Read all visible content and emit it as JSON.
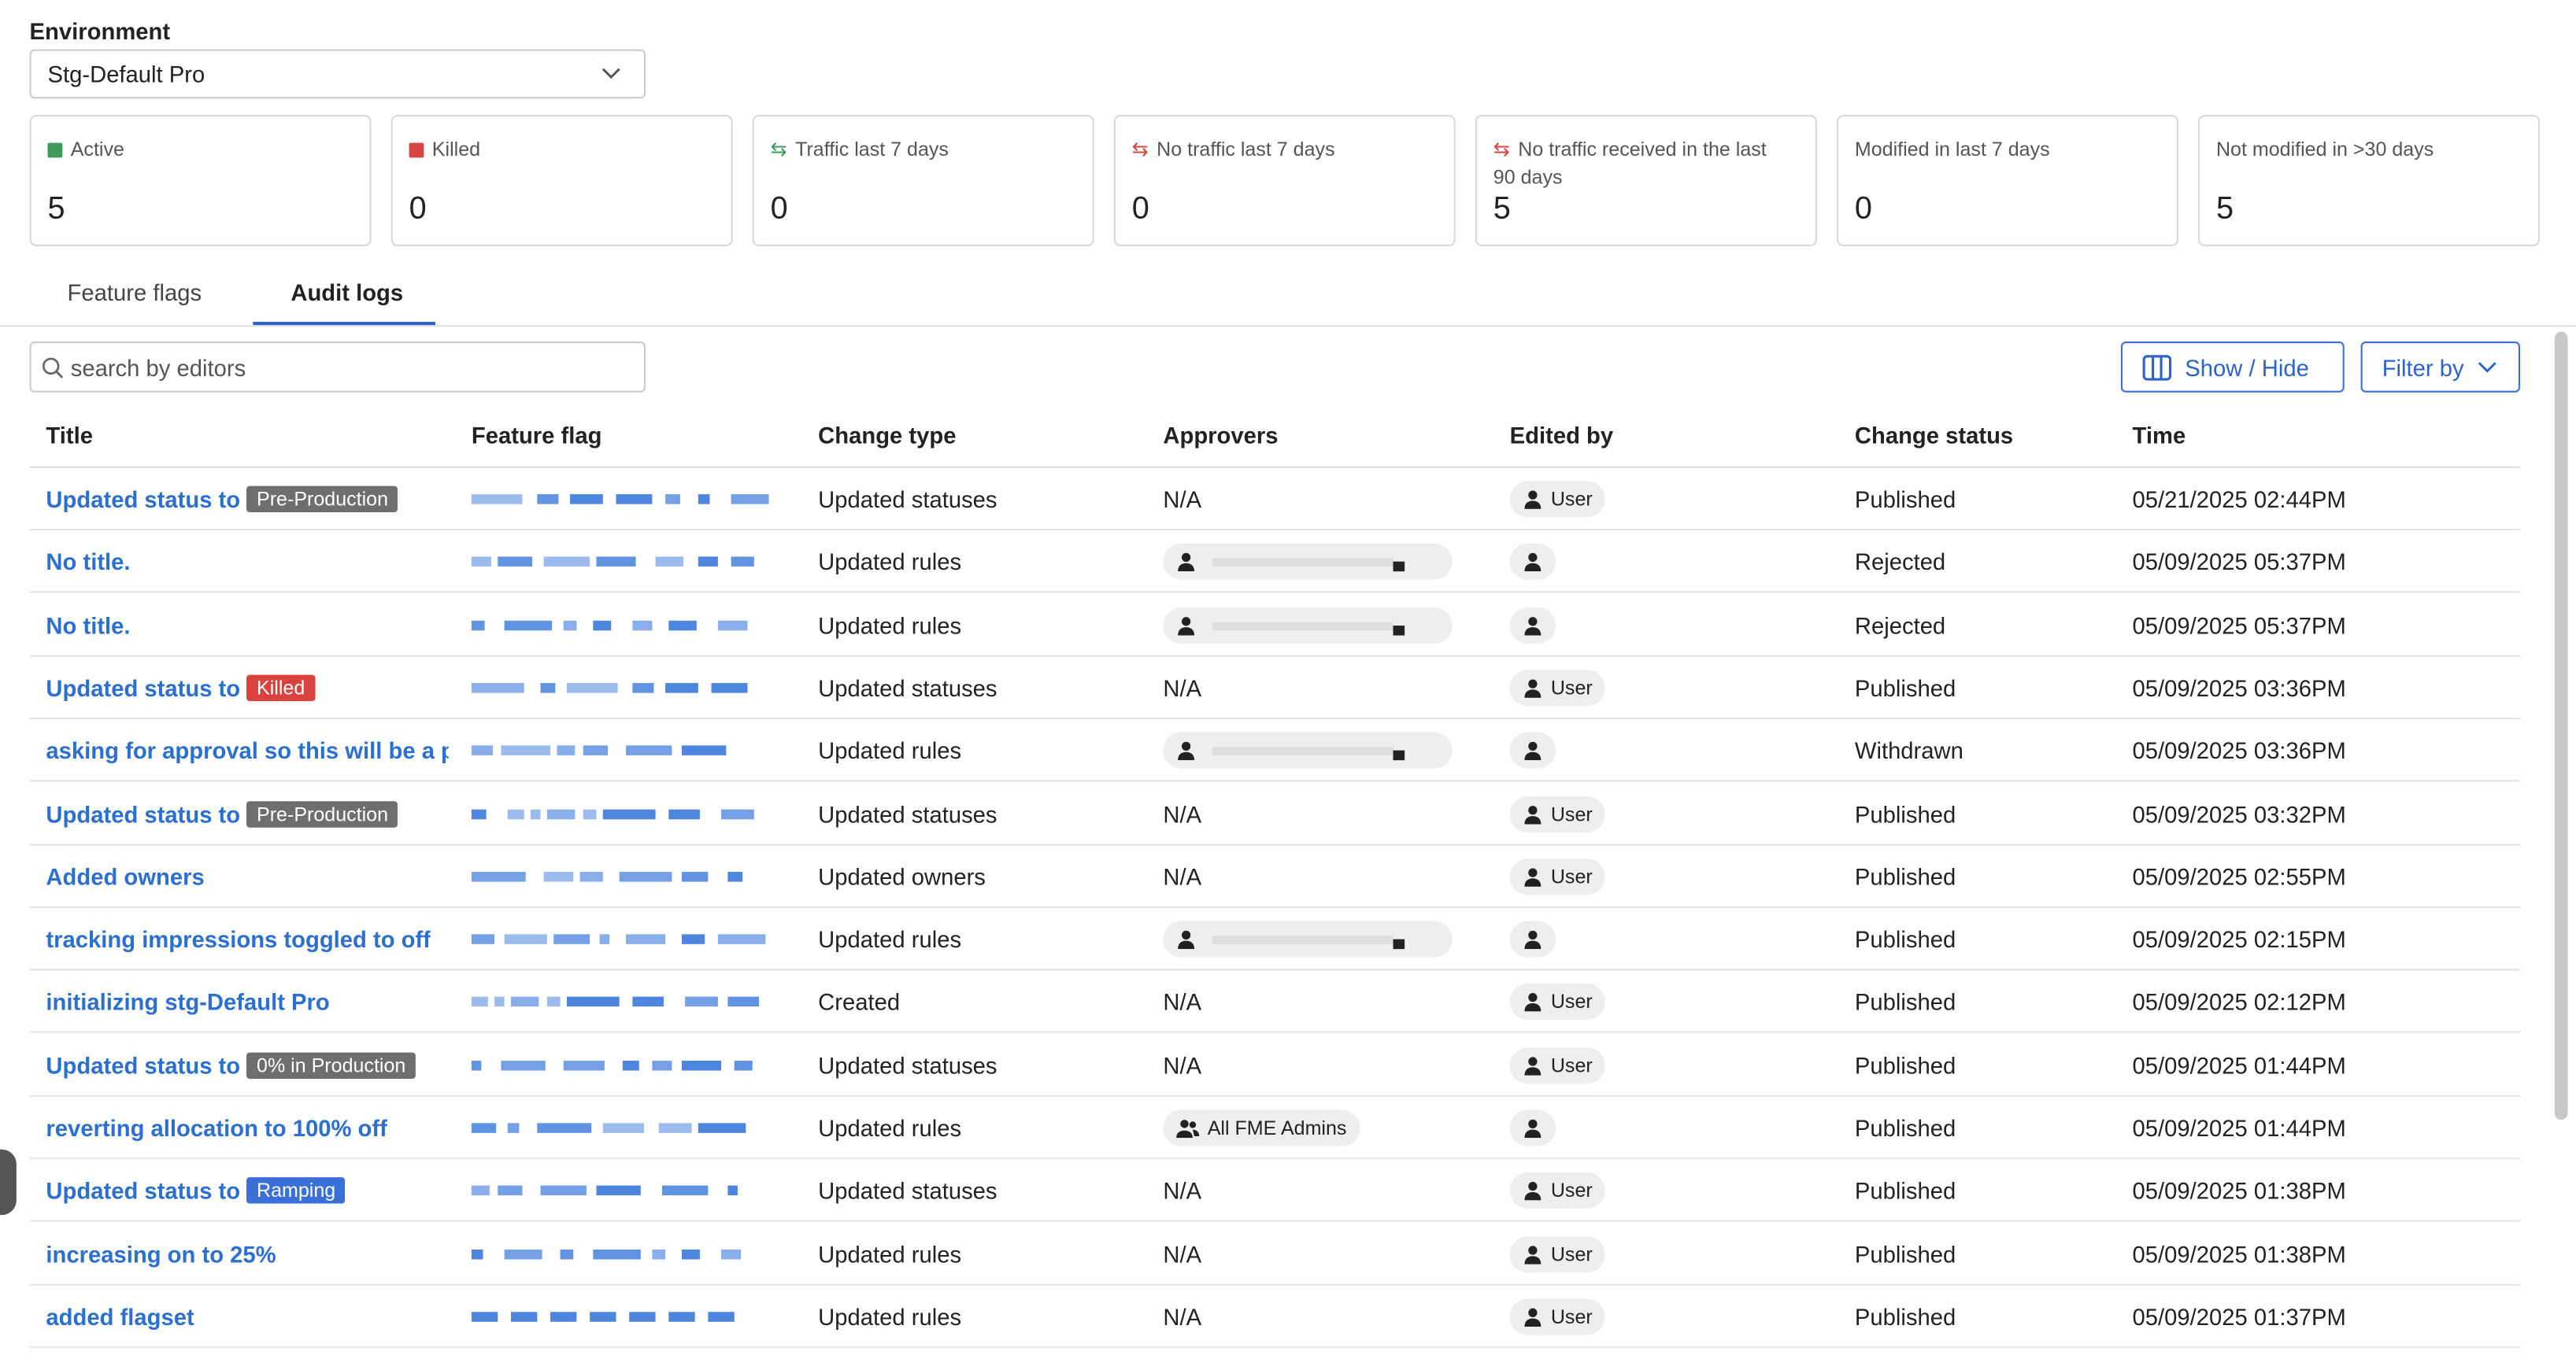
{
  "environment": {
    "label": "Environment",
    "value": "Stg-Default Pro"
  },
  "stats": [
    {
      "label": "Active",
      "value": 5,
      "icon": "square",
      "color": "#3d9a5c"
    },
    {
      "label": "Killed",
      "value": 0,
      "icon": "square",
      "color": "#d64545"
    },
    {
      "label": "Traffic last 7 days",
      "value": 0,
      "icon": "swap",
      "color": "#3d9a5c"
    },
    {
      "label": "No traffic last 7 days",
      "value": 0,
      "icon": "swap",
      "color": "#d64545"
    },
    {
      "label": "No traffic received in the last 90 days",
      "value": 5,
      "icon": "swap",
      "color": "#d64545"
    },
    {
      "label": "Modified in last 7 days",
      "value": 0
    },
    {
      "label": "Not modified in >30 days",
      "value": 5
    }
  ],
  "tabs": [
    "Feature flags",
    "Audit logs"
  ],
  "active_tab": 1,
  "search": {
    "placeholder": "search by editors"
  },
  "buttons": [
    "Show / Hide",
    "Filter by"
  ],
  "table": {
    "columns": [
      "Title",
      "Feature flag",
      "Change type",
      "Approvers",
      "Edited by",
      "Change status",
      "Time"
    ],
    "rows": [
      {
        "title": "Updated status to",
        "badge": "Pre-Production",
        "badge_color": "#6e6e6e",
        "change_type": "Updated statuses",
        "approvers": "N/A",
        "edited_by": "User",
        "status": "Published",
        "time": "05/21/2025 02:44PM"
      },
      {
        "title": "No title.",
        "change_type": "Updated rules",
        "status": "Rejected",
        "time": "05/09/2025 05:37PM"
      },
      {
        "title": "No title.",
        "change_type": "Updated rules",
        "status": "Rejected",
        "time": "05/09/2025 05:37PM"
      },
      {
        "title": "Updated status to",
        "badge": "Killed",
        "badge_color": "#d9433f",
        "change_type": "Updated statuses",
        "approvers": "N/A",
        "edited_by": "User",
        "status": "Published",
        "time": "05/09/2025 03:36PM"
      },
      {
        "title": "asking for approval so this will be a pe",
        "change_type": "Updated rules",
        "status": "Withdrawn",
        "time": "05/09/2025 03:36PM"
      },
      {
        "title": "Updated status to",
        "badge": "Pre-Production",
        "badge_color": "#6e6e6e",
        "change_type": "Updated statuses",
        "approvers": "N/A",
        "edited_by": "User",
        "status": "Published",
        "time": "05/09/2025 03:32PM"
      },
      {
        "title": "Added owners",
        "change_type": "Updated owners",
        "approvers": "N/A",
        "edited_by": "User",
        "status": "Published",
        "time": "05/09/2025 02:55PM"
      },
      {
        "title": "tracking impressions toggled to off",
        "change_type": "Updated rules",
        "status": "Published",
        "time": "05/09/2025 02:15PM"
      },
      {
        "title": "initializing stg-Default Pro",
        "change_type": "Created",
        "approvers": "N/A",
        "edited_by": "User",
        "status": "Published",
        "time": "05/09/2025 02:12PM"
      },
      {
        "title": "Updated status to",
        "badge": "0% in Production",
        "badge_color": "#6e6e6e",
        "change_type": "Updated statuses",
        "approvers": "N/A",
        "edited_by": "User",
        "status": "Published",
        "time": "05/09/2025 01:44PM"
      },
      {
        "title": "reverting allocation to 100% off",
        "change_type": "Updated rules",
        "approvers_group": "All FME Admins",
        "status": "Published",
        "time": "05/09/2025 01:44PM"
      },
      {
        "title": "Updated status to",
        "badge": "Ramping",
        "badge_color": "#3a6fd8",
        "change_type": "Updated statuses",
        "approvers": "N/A",
        "edited_by": "User",
        "status": "Published",
        "time": "05/09/2025 01:38PM"
      },
      {
        "title": "increasing on to 25%",
        "change_type": "Updated rules",
        "approvers": "N/A",
        "edited_by": "User",
        "status": "Published",
        "time": "05/09/2025 01:38PM"
      },
      {
        "title": "added flagset",
        "change_type": "Updated rules",
        "approvers": "N/A",
        "edited_by": "User",
        "status": "Published",
        "time": "05/09/2025 01:37PM"
      }
    ]
  }
}
